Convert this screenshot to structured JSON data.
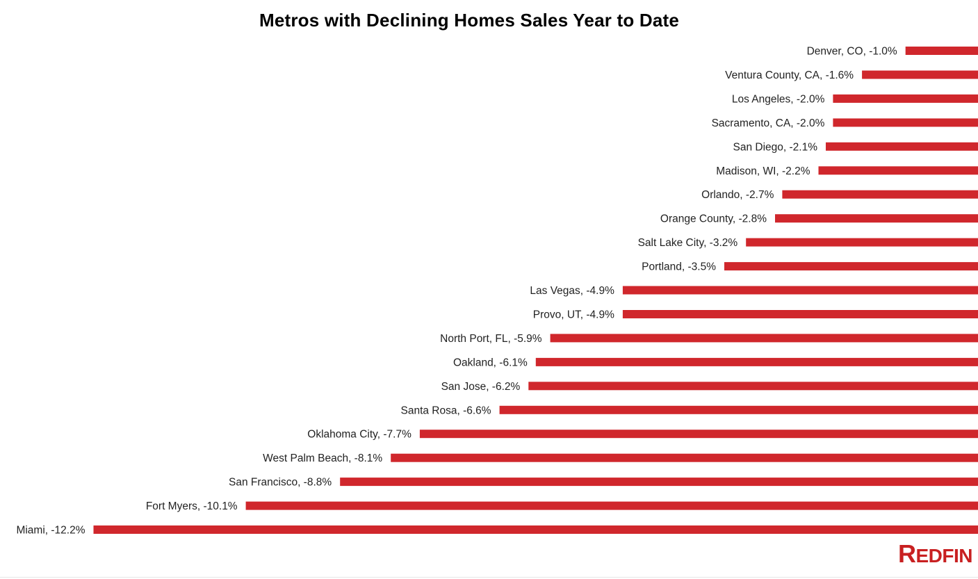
{
  "chart_data": {
    "type": "bar",
    "orientation": "horizontal",
    "title": "Metros with Declining Homes Sales Year to Date",
    "bar_color": "#d0272c",
    "categories": [
      "Denver, CO",
      "Ventura County, CA",
      "Los Angeles",
      "Sacramento, CA",
      "San Diego",
      "Madison, WI",
      "Orlando",
      "Orange County",
      "Salt Lake City",
      "Portland",
      "Las Vegas",
      "Provo, UT",
      "North Port, FL",
      "Oakland",
      "San Jose",
      "Santa Rosa",
      "Oklahoma City",
      "West Palm Beach",
      "San Francisco",
      "Fort Myers",
      "Miami"
    ],
    "values": [
      -1.0,
      -1.6,
      -2.0,
      -2.0,
      -2.1,
      -2.2,
      -2.7,
      -2.8,
      -3.2,
      -3.5,
      -4.9,
      -4.9,
      -5.9,
      -6.1,
      -6.2,
      -6.6,
      -7.7,
      -8.1,
      -8.8,
      -10.1,
      -12.2
    ],
    "labels": [
      "Denver, CO, -1.0%",
      "Ventura County, CA, -1.6%",
      "Los Angeles, -2.0%",
      "Sacramento, CA, -2.0%",
      "San Diego, -2.1%",
      "Madison, WI, -2.2%",
      "Orlando, -2.7%",
      "Orange County, -2.8%",
      "Salt Lake City, -3.2%",
      "Portland, -3.5%",
      "Las Vegas, -4.9%",
      "Provo, UT, -4.9%",
      "North Port, FL, -5.9%",
      "Oakland, -6.1%",
      "San Jose, -6.2%",
      "Santa Rosa, -6.6%",
      "Oklahoma City, -7.7%",
      "West Palm Beach, -8.1%",
      "San Francisco, -8.8%",
      "Fort Myers, -10.1%",
      "Miami, -12.2%"
    ],
    "xlabel": "",
    "ylabel": "",
    "grid": false,
    "legend": false
  },
  "brand": {
    "logo_text": "REDFIN",
    "color": "#c82021"
  }
}
